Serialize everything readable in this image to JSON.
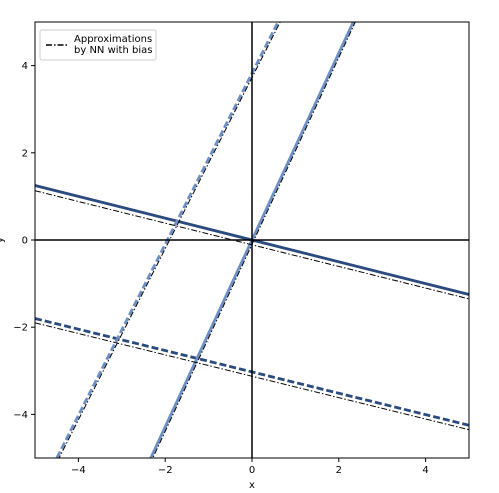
{
  "chart_data": {
    "type": "line",
    "xlabel": "x",
    "ylabel": "y",
    "xlim": [
      -5,
      5
    ],
    "ylim": [
      -5,
      5
    ],
    "xticks": [
      -4,
      -2,
      0,
      2,
      4
    ],
    "yticks": [
      -4,
      -2,
      0,
      2,
      4
    ],
    "grid": false,
    "axes_lines_at_origin": true,
    "legend": {
      "placement": "top-left",
      "entries": [
        "Approximations\nby NN with bias"
      ]
    },
    "series": [
      {
        "style": "solid",
        "color": "#2b4a7e",
        "x": [
          -5,
          5
        ],
        "y": [
          1.25,
          -1.25
        ]
      },
      {
        "style": "dashed",
        "color": "#2b4a7e",
        "x": [
          -5,
          5
        ],
        "y": [
          -1.8,
          -4.25
        ]
      },
      {
        "style": "solid",
        "color": "#6d8fc4",
        "x": [
          -2.8,
          2.8
        ],
        "y": [
          -6.0,
          6.0
        ]
      },
      {
        "style": "dashed",
        "color": "#6d8fc4",
        "x": [
          -4.6,
          0.7
        ],
        "y": [
          -5.2,
          5.2
        ]
      },
      {
        "name": "Approximations\nby NN with bias",
        "style": "dashdot",
        "color": "#000000",
        "x": [
          -5,
          5
        ],
        "y": [
          1.13,
          -1.35
        ]
      },
      {
        "style": "dashdot",
        "color": "#000000",
        "x": [
          -5,
          5
        ],
        "y": [
          -1.9,
          -4.35
        ]
      },
      {
        "style": "dashdot",
        "color": "#000000",
        "x": [
          -2.8,
          2.8
        ],
        "y": [
          -6.1,
          5.9
        ]
      },
      {
        "style": "dashdot",
        "color": "#000000",
        "x": [
          -4.6,
          0.7
        ],
        "y": [
          -5.3,
          5.1
        ]
      }
    ]
  }
}
